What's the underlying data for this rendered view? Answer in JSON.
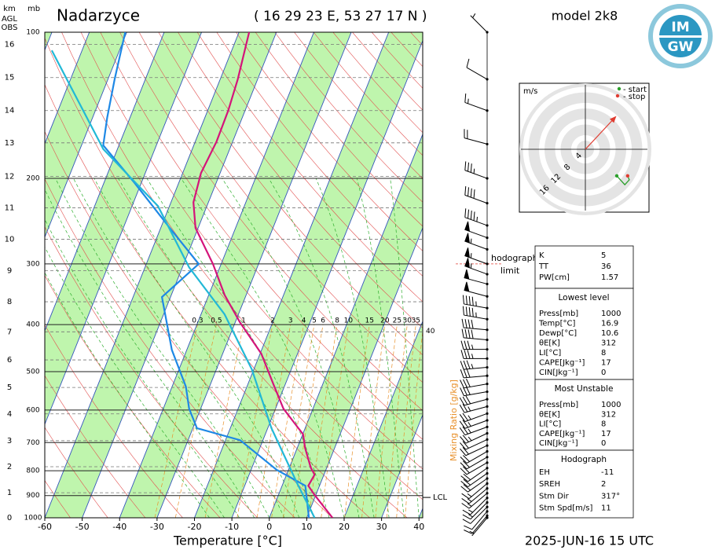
{
  "chart_data": {
    "type": "skewt",
    "title": "Nadarzyce",
    "subtitle": "( 16 29 23 E, 53 27 17 N )",
    "model": "model 2k8",
    "date": "2025-JUN-16   15 UTC",
    "xlabel": "Temperature [°C]",
    "ylabel": "mb",
    "xlim": [
      -60,
      41
    ],
    "xticks": [
      -60,
      -50,
      -40,
      -30,
      -20,
      -10,
      0,
      10,
      20,
      30,
      40
    ],
    "ylim": [
      1000,
      100
    ],
    "yticks": [
      100,
      200,
      300,
      400,
      500,
      600,
      700,
      800,
      900,
      1000
    ],
    "log_y": true,
    "height_axis": {
      "labels": [
        "km",
        "AGL",
        "OBS"
      ],
      "ticks": [
        0,
        1,
        2,
        3,
        4,
        5,
        6,
        7,
        8,
        9,
        10,
        11,
        12,
        13,
        14,
        15,
        16
      ],
      "pressure": [
        1000,
        888,
        785,
        694,
        611,
        539,
        473,
        414,
        359,
        310,
        267,
        230,
        198,
        169,
        145,
        124,
        106
      ]
    },
    "series": [
      {
        "color": "#d4147a",
        "pressure": [
          1000,
          898,
          859,
          815,
          788,
          718,
          673,
          596,
          533,
          459,
          396,
          348,
          300,
          253,
          224,
          195,
          168,
          145,
          125,
          100
        ],
        "values": [
          16.9,
          9.7,
          7.0,
          7.5,
          5.7,
          2.1,
          0.1,
          -7.9,
          -13.0,
          -19.7,
          -28.7,
          -35.7,
          -42.2,
          -50.7,
          -54.0,
          -55.1,
          -54.3,
          -54.5,
          -55.3,
          -57.3
        ]
      },
      {
        "color": "#1e88e5",
        "pressure": [
          1000,
          859,
          797,
          692,
          654,
          596,
          537,
          451,
          351,
          300,
          253,
          204,
          171,
          150,
          125,
          100
        ],
        "values": [
          10.6,
          6.2,
          -3.1,
          -16.1,
          -28.9,
          -33.1,
          -36.3,
          -44.0,
          -52.3,
          -46.0,
          -57.6,
          -71.9,
          -84.2,
          -86.1,
          -88.2,
          -90.4
        ]
      },
      {
        "color": "#22b8d6",
        "pressure": [
          1000,
          850,
          654,
          495,
          381,
          305,
          228,
          174,
          109
        ],
        "values": [
          12.1,
          3.8,
          -9.0,
          -20.5,
          -33.7,
          -48.2,
          -63.1,
          -83.8,
          -108.1
        ]
      }
    ],
    "mixing_ratio": {
      "label": "Mixing Ratio [g/kg]",
      "color": "#e8902a",
      "values": [
        0.3,
        0.5,
        1,
        2,
        3,
        4,
        5,
        6,
        8,
        10,
        15,
        20,
        25,
        30,
        35,
        40
      ]
    },
    "lcl": {
      "label": "LCL",
      "pressure": 908
    },
    "hodograph_limit": {
      "label": [
        "hodograph",
        "limit"
      ],
      "pressure": 300
    },
    "wind": {
      "pressure": [
        100,
        125,
        145,
        170,
        200,
        225,
        250,
        265,
        280,
        300,
        315,
        330,
        350,
        370,
        390,
        410,
        430,
        450,
        470,
        490,
        510,
        530,
        550,
        570,
        590,
        610,
        630,
        650,
        670,
        690,
        710,
        730,
        750,
        770,
        790,
        810,
        830,
        850,
        870,
        890,
        910,
        930,
        950,
        970,
        990,
        1000
      ],
      "speed": [
        5,
        10,
        15,
        20,
        35,
        40,
        45,
        50,
        55,
        55,
        55,
        50,
        50,
        45,
        45,
        40,
        40,
        35,
        35,
        35,
        30,
        30,
        30,
        30,
        25,
        25,
        25,
        25,
        25,
        20,
        20,
        20,
        20,
        20,
        20,
        20,
        20,
        15,
        15,
        15,
        15,
        15,
        10,
        10,
        10,
        5
      ],
      "direction": [
        315,
        300,
        290,
        285,
        290,
        290,
        290,
        290,
        290,
        290,
        290,
        285,
        285,
        280,
        280,
        275,
        275,
        270,
        270,
        265,
        265,
        260,
        260,
        255,
        255,
        250,
        250,
        250,
        245,
        245,
        245,
        240,
        240,
        240,
        235,
        235,
        235,
        230,
        230,
        230,
        225,
        225,
        225,
        220,
        220,
        220
      ]
    },
    "hodograph": {
      "unit": "m/s",
      "rings": [
        4,
        8,
        12,
        16
      ],
      "legend": [
        "- start",
        "- stop"
      ],
      "start_color": "#2ca02c",
      "stop_color": "#e03c31",
      "u": [
        7.8,
        9.8,
        10.9,
        10.5
      ],
      "v": [
        -6.6,
        -8.8,
        -7.6,
        -6.6
      ]
    }
  },
  "logo": [
    "IM",
    "GW"
  ],
  "indices": {
    "sections": [
      {
        "rows": [
          [
            "K",
            5
          ],
          [
            "TT",
            36
          ],
          [
            "PW[cm]",
            1.57
          ]
        ]
      },
      {
        "title": "Lowest level",
        "rows": [
          [
            "Press[mb]",
            1000
          ],
          [
            "Temp[°C]",
            16.9
          ],
          [
            "Dewp[°C]",
            10.6
          ],
          [
            "θE[K]",
            312
          ],
          [
            "LI[°C]",
            8
          ],
          [
            "CAPE[Jkg⁻¹]",
            17
          ],
          [
            "CIN[Jkg⁻¹]",
            0
          ]
        ]
      },
      {
        "title": "Most Unstable",
        "rows": [
          [
            "Press[mb]",
            1000
          ],
          [
            "θE[K]",
            312
          ],
          [
            "LI[°C]",
            8
          ],
          [
            "CAPE[Jkg⁻¹]",
            17
          ],
          [
            "CIN[Jkg⁻¹]",
            0
          ]
        ]
      },
      {
        "title": "Hodograph",
        "rows": [
          [
            "EH",
            -11
          ],
          [
            "SREH",
            2
          ],
          [
            "Stm Dir",
            {
              "value": 317,
              "label": "317°"
            }
          ],
          [
            "Stm Spd[m/s]",
            11
          ]
        ]
      }
    ]
  }
}
